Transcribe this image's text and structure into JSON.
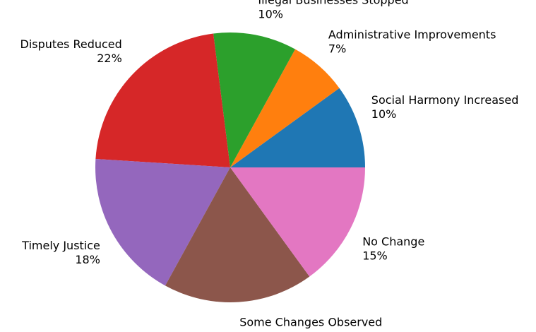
{
  "chart_data": {
    "type": "pie",
    "title": "",
    "start_angle_deg": 0,
    "direction": "counterclockwise",
    "slices": [
      {
        "label": "Social Harmony Increased",
        "value": 10,
        "pct_label": "10%",
        "color": "#1f77b4"
      },
      {
        "label": "Administrative Improvements",
        "value": 7,
        "pct_label": "7%",
        "color": "#ff7f0e"
      },
      {
        "label": "Illegal Businesses Stopped",
        "value": 10,
        "pct_label": "10%",
        "color": "#2ca02c"
      },
      {
        "label": "Disputes Reduced",
        "value": 22,
        "pct_label": "22%",
        "color": "#d62728"
      },
      {
        "label": "Timely Justice",
        "value": 18,
        "pct_label": "18%",
        "color": "#9467bd"
      },
      {
        "label": "Some Changes Observed",
        "value": 18,
        "pct_label": "18%",
        "color": "#8c564b"
      },
      {
        "label": "No Change",
        "value": 15,
        "pct_label": "15%",
        "color": "#e377c2"
      }
    ]
  }
}
